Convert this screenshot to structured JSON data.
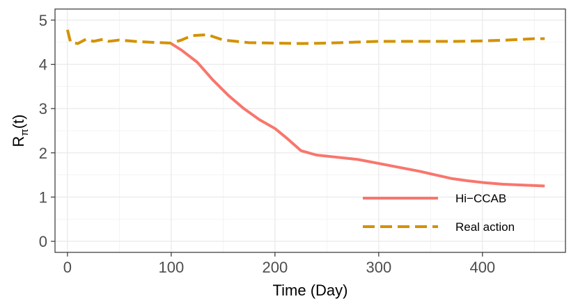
{
  "chart_data": {
    "type": "line",
    "xlabel": "Time (Day)",
    "ylabel": {
      "base": "R",
      "subscript": "π",
      "suffix": "(t)"
    },
    "xlim": [
      -12,
      480
    ],
    "ylim": [
      -0.25,
      5.25
    ],
    "x_ticks": [
      0,
      100,
      200,
      300,
      400
    ],
    "y_ticks": [
      0,
      1,
      2,
      3,
      4,
      5
    ],
    "x_tick_labels": [
      "0",
      "100",
      "200",
      "300",
      "400"
    ],
    "y_tick_labels": [
      "0",
      "1",
      "2",
      "3",
      "4",
      "5"
    ],
    "grid": true,
    "legend_position": "bottom-right",
    "series": [
      {
        "name": "Hi−CCAB",
        "color": "#F8766D",
        "dash": "solid",
        "x": [
          100,
          110,
          125,
          140,
          155,
          170,
          185,
          200,
          212,
          225,
          240,
          260,
          280,
          300,
          320,
          340,
          355,
          370,
          385,
          400,
          420,
          440,
          460
        ],
        "y": [
          4.47,
          4.32,
          4.05,
          3.65,
          3.3,
          3.0,
          2.75,
          2.55,
          2.32,
          2.05,
          1.95,
          1.9,
          1.85,
          1.76,
          1.67,
          1.58,
          1.5,
          1.42,
          1.37,
          1.33,
          1.29,
          1.27,
          1.25
        ]
      },
      {
        "name": "Real action",
        "color": "#D39200",
        "dash": "dashed",
        "x": [
          0,
          3,
          10,
          18,
          25,
          35,
          40,
          50,
          65,
          80,
          100,
          110,
          120,
          135,
          150,
          175,
          200,
          225,
          250,
          275,
          300,
          325,
          350,
          375,
          400,
          425,
          450,
          460
        ],
        "y": [
          4.78,
          4.5,
          4.47,
          4.57,
          4.52,
          4.57,
          4.52,
          4.55,
          4.52,
          4.5,
          4.48,
          4.55,
          4.65,
          4.67,
          4.55,
          4.49,
          4.48,
          4.47,
          4.48,
          4.5,
          4.52,
          4.52,
          4.52,
          4.52,
          4.53,
          4.55,
          4.58,
          4.58
        ]
      }
    ]
  }
}
